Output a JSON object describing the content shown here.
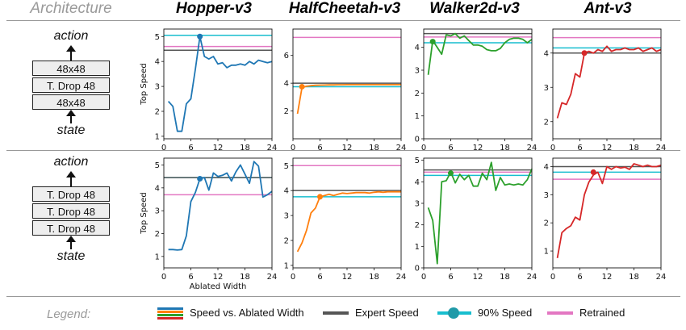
{
  "headers": {
    "architecture": "Architecture",
    "envs": [
      {
        "label": "Hopper-v3",
        "color": "#1f77b4"
      },
      {
        "label": "HalfCheetah-v3",
        "color": "#ff7f0e"
      },
      {
        "label": "Walker2d-v3",
        "color": "#2ca02c"
      },
      {
        "label": "Ant-v3",
        "color": "#d62728"
      }
    ]
  },
  "arch_top": {
    "action": "action",
    "state": "state",
    "layers": [
      "48x48",
      "T. Drop 48",
      "48x48"
    ]
  },
  "arch_bottom": {
    "action": "action",
    "state": "state",
    "layers": [
      "T. Drop 48",
      "T. Drop 48",
      "T. Drop 48"
    ]
  },
  "legend": {
    "title": "Legend:",
    "speed": "Speed vs. Ablated Width",
    "expert": "Expert Speed",
    "ninety": "90% Speed",
    "retrained": "Retrained"
  },
  "colors": {
    "expert": "#555555",
    "ninety": "#17becf",
    "retrained": "#e377c2"
  },
  "chart_data": [
    {
      "type": "line",
      "row": 0,
      "col": 0,
      "env": "Hopper-v3",
      "color": "#1f77b4",
      "ylabel": "Top Speed",
      "xlabel": "",
      "xlim": [
        0,
        24
      ],
      "ylim": [
        0.9,
        5.3
      ],
      "xticks": [
        0,
        6,
        12,
        18,
        24
      ],
      "yticks": [
        1,
        2,
        3,
        4,
        5
      ],
      "x": [
        1,
        2,
        3,
        4,
        5,
        6,
        7,
        8,
        9,
        10,
        11,
        12,
        13,
        14,
        15,
        16,
        17,
        18,
        19,
        20,
        21,
        22,
        23,
        24
      ],
      "y": [
        2.4,
        2.2,
        1.2,
        1.2,
        2.3,
        2.5,
        3.7,
        5.0,
        4.2,
        4.1,
        4.2,
        3.9,
        3.95,
        3.75,
        3.85,
        3.85,
        3.9,
        3.85,
        4.0,
        3.9,
        4.05,
        4.0,
        3.95,
        4.0
      ],
      "expert": 4.45,
      "ninety": 5.05,
      "retrained": 4.6,
      "marker": [
        8,
        5.0
      ]
    },
    {
      "type": "line",
      "row": 0,
      "col": 1,
      "env": "HalfCheetah-v3",
      "color": "#ff7f0e",
      "ylabel": "",
      "xlabel": "",
      "xlim": [
        0,
        24
      ],
      "ylim": [
        0,
        7.9
      ],
      "xticks": [
        0,
        6,
        12,
        18,
        24
      ],
      "yticks": [
        2,
        4,
        6
      ],
      "x": [
        1,
        2,
        3,
        4,
        5,
        6,
        7,
        8,
        9,
        10,
        11,
        12,
        13,
        14,
        15,
        16,
        17,
        18,
        19,
        20,
        21,
        22,
        23,
        24
      ],
      "y": [
        1.8,
        3.7,
        3.78,
        3.82,
        3.85,
        3.86,
        3.87,
        3.88,
        3.88,
        3.89,
        3.89,
        3.9,
        3.9,
        3.9,
        3.9,
        3.9,
        3.9,
        3.9,
        3.9,
        3.9,
        3.9,
        3.9,
        3.9,
        3.9
      ],
      "expert": 4.0,
      "ninety": 3.75,
      "retrained": 7.3,
      "marker": [
        2,
        3.75
      ]
    },
    {
      "type": "line",
      "row": 0,
      "col": 2,
      "env": "Walker2d-v3",
      "color": "#2ca02c",
      "ylabel": "",
      "xlabel": "",
      "xlim": [
        0,
        24
      ],
      "ylim": [
        0,
        4.8
      ],
      "xticks": [
        0,
        6,
        12,
        18,
        24
      ],
      "yticks": [
        0,
        1,
        2,
        3,
        4
      ],
      "x": [
        1,
        2,
        3,
        4,
        5,
        6,
        7,
        8,
        9,
        10,
        11,
        12,
        13,
        14,
        15,
        16,
        17,
        18,
        19,
        20,
        21,
        22,
        23,
        24
      ],
      "y": [
        2.8,
        4.3,
        4.0,
        3.7,
        4.55,
        4.5,
        4.6,
        4.4,
        4.5,
        4.3,
        4.1,
        4.1,
        4.05,
        3.9,
        3.85,
        3.85,
        3.95,
        4.2,
        4.35,
        4.4,
        4.4,
        4.35,
        4.2,
        4.35
      ],
      "expert": 4.6,
      "ninety": 4.2,
      "retrained": 4.45,
      "marker": [
        2,
        4.25
      ]
    },
    {
      "type": "line",
      "row": 0,
      "col": 3,
      "env": "Ant-v3",
      "color": "#d62728",
      "ylabel": "",
      "xlabel": "",
      "xlim": [
        0,
        24
      ],
      "ylim": [
        1.5,
        4.7
      ],
      "xticks": [
        0,
        6,
        12,
        18,
        24
      ],
      "yticks": [
        2,
        3,
        4
      ],
      "x": [
        1,
        2,
        3,
        4,
        5,
        6,
        7,
        8,
        9,
        10,
        11,
        12,
        13,
        14,
        15,
        16,
        17,
        18,
        19,
        20,
        21,
        22,
        23,
        24
      ],
      "y": [
        2.1,
        2.55,
        2.5,
        2.8,
        3.4,
        3.3,
        4.0,
        4.05,
        4.0,
        4.1,
        4.05,
        4.2,
        4.05,
        4.1,
        4.1,
        4.15,
        4.1,
        4.1,
        4.15,
        4.05,
        4.1,
        4.15,
        4.05,
        4.1
      ],
      "expert": 4.0,
      "ninety": 4.15,
      "retrained": 4.45,
      "marker": [
        7,
        4.0
      ]
    },
    {
      "type": "line",
      "row": 1,
      "col": 0,
      "env": "Hopper-v3",
      "color": "#1f77b4",
      "ylabel": "Top Speed",
      "xlabel": "Ablated Width",
      "xlim": [
        0,
        24
      ],
      "ylim": [
        0.5,
        5.3
      ],
      "xticks": [
        0,
        6,
        12,
        18,
        24
      ],
      "yticks": [
        1,
        2,
        3,
        4,
        5
      ],
      "x": [
        1,
        2,
        3,
        4,
        5,
        6,
        7,
        8,
        9,
        10,
        11,
        12,
        13,
        14,
        15,
        16,
        17,
        18,
        19,
        20,
        21,
        22,
        23,
        24
      ],
      "y": [
        1.3,
        1.3,
        1.28,
        1.3,
        1.9,
        3.4,
        3.8,
        4.4,
        4.45,
        3.9,
        4.65,
        4.5,
        4.55,
        4.65,
        4.3,
        4.7,
        5.0,
        4.6,
        4.2,
        5.15,
        4.95,
        3.6,
        3.7,
        3.85
      ],
      "expert": 4.45,
      "ninety": 4.45,
      "retrained": 3.7,
      "marker": [
        8,
        4.4
      ]
    },
    {
      "type": "line",
      "row": 1,
      "col": 1,
      "env": "HalfCheetah-v3",
      "color": "#ff7f0e",
      "ylabel": "",
      "xlabel": "",
      "xlim": [
        0,
        24
      ],
      "ylim": [
        0.9,
        5.3
      ],
      "xticks": [
        0,
        6,
        12,
        18,
        24
      ],
      "yticks": [
        1,
        2,
        3,
        4,
        5
      ],
      "x": [
        1,
        2,
        3,
        4,
        5,
        6,
        7,
        8,
        9,
        10,
        11,
        12,
        13,
        14,
        15,
        16,
        17,
        18,
        19,
        20,
        21,
        22,
        23,
        24
      ],
      "y": [
        1.55,
        1.9,
        2.4,
        3.1,
        3.3,
        3.75,
        3.8,
        3.85,
        3.8,
        3.85,
        3.9,
        3.88,
        3.9,
        3.92,
        3.92,
        3.92,
        3.9,
        3.93,
        3.95,
        3.93,
        3.95,
        3.95,
        3.95,
        3.95
      ],
      "expert": 4.0,
      "ninety": 3.75,
      "retrained": 5.0,
      "marker": [
        6,
        3.75
      ]
    },
    {
      "type": "line",
      "row": 1,
      "col": 2,
      "env": "Walker2d-v3",
      "color": "#2ca02c",
      "ylabel": "",
      "xlabel": "",
      "xlim": [
        0,
        24
      ],
      "ylim": [
        0,
        5.1
      ],
      "xticks": [
        0,
        6,
        12,
        18,
        24
      ],
      "yticks": [
        0,
        1,
        2,
        3,
        4,
        5
      ],
      "x": [
        1,
        2,
        3,
        4,
        5,
        6,
        7,
        8,
        9,
        10,
        11,
        12,
        13,
        14,
        15,
        16,
        17,
        18,
        19,
        20,
        21,
        22,
        23,
        24
      ],
      "y": [
        2.8,
        2.2,
        0.2,
        4.0,
        4.05,
        4.45,
        3.95,
        4.35,
        4.1,
        4.3,
        3.8,
        3.8,
        4.4,
        4.1,
        4.9,
        3.6,
        4.2,
        3.85,
        3.9,
        3.85,
        3.9,
        3.85,
        4.1,
        4.6
      ],
      "expert": 4.55,
      "ninety": 4.3,
      "retrained": 4.45,
      "marker": [
        6,
        4.4
      ]
    },
    {
      "type": "line",
      "row": 1,
      "col": 3,
      "env": "Ant-v3",
      "color": "#d62728",
      "ylabel": "",
      "xlabel": "",
      "xlim": [
        0,
        24
      ],
      "ylim": [
        0.4,
        4.3
      ],
      "xticks": [
        0,
        6,
        12,
        18,
        24
      ],
      "yticks": [
        1,
        2,
        3,
        4
      ],
      "x": [
        1,
        2,
        3,
        4,
        5,
        6,
        7,
        8,
        9,
        10,
        11,
        12,
        13,
        14,
        15,
        16,
        17,
        18,
        19,
        20,
        21,
        22,
        23,
        24
      ],
      "y": [
        0.75,
        1.65,
        1.8,
        1.9,
        2.2,
        2.1,
        3.0,
        3.45,
        3.7,
        3.8,
        3.4,
        4.0,
        3.9,
        4.0,
        3.95,
        3.98,
        3.9,
        4.1,
        4.05,
        4.0,
        4.05,
        4.0,
        4.0,
        4.05
      ],
      "expert": 4.0,
      "ninety": 3.8,
      "retrained": 3.55,
      "marker": [
        9,
        3.8
      ]
    }
  ]
}
